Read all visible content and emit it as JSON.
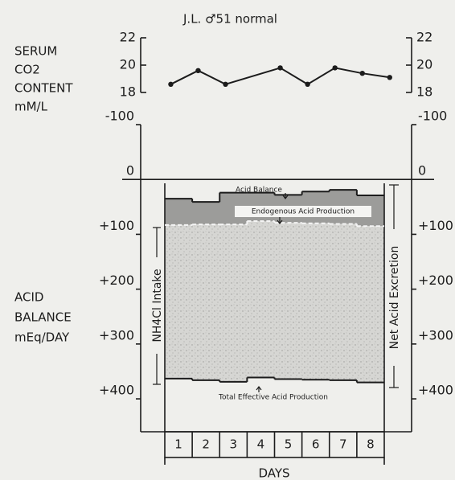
{
  "chart_data": [
    {
      "type": "line",
      "title": "J.L. ♂51 normal",
      "y_label": [
        "SERUM",
        "CO2",
        "CONTENT",
        "mM/L"
      ],
      "x": [
        0.2,
        1.2,
        2.2,
        4.2,
        5.2,
        6.2,
        7.2,
        8.2
      ],
      "values": [
        18.6,
        19.6,
        18.6,
        19.8,
        18.6,
        19.8,
        19.4,
        19.1
      ],
      "color": "#1c1c1c",
      "xlim": [
        -0.9,
        9
      ],
      "ylim": [
        18,
        22
      ],
      "yticks": [
        18,
        20,
        22
      ]
    },
    {
      "type": "step",
      "y_label": [
        "ACID",
        "BALANCE",
        "mEq/DAY"
      ],
      "x_label": "DAYS",
      "categories": [
        "1",
        "2",
        "3",
        "4",
        "5",
        "6",
        "7",
        "8"
      ],
      "series": [
        {
          "name": "Acid Balance",
          "color": "#1c1c1c",
          "values": [
            35,
            41,
            24,
            24,
            28,
            22,
            19,
            29
          ]
        },
        {
          "name": "Endogenous Acid Production",
          "color": "#f4f4f4",
          "dashed": true,
          "values": [
            83,
            82,
            82,
            76,
            79,
            80,
            81,
            85
          ]
        },
        {
          "name": "Total Effective Acid Production",
          "color": "#1c1c1c",
          "values": [
            363,
            366,
            369,
            361,
            364,
            365,
            366,
            370
          ]
        }
      ],
      "fills": [
        "#9c9c9a",
        "#d6d6d3"
      ],
      "annotations": [
        "NH4Cl Intake",
        "Net Acid Excretion"
      ],
      "ylim": [
        -100,
        460
      ],
      "yticks": [
        -100,
        0,
        {
          "value": 100,
          "label": "+100"
        },
        {
          "value": 200,
          "label": "+200"
        },
        {
          "value": 300,
          "label": "+300"
        },
        {
          "value": 400,
          "label": "+400"
        }
      ]
    }
  ]
}
